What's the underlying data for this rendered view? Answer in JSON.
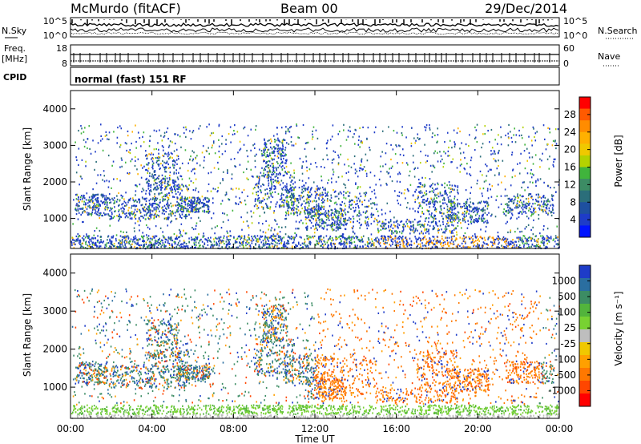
{
  "header": {
    "title": "McMurdo (fitACF)",
    "beam": "Beam 00",
    "date": "29/Dec/2014"
  },
  "top_panels": {
    "nsky_label": "N.Sky",
    "nsearch_label": "N.Search",
    "nsky_ticks": [
      "10^5",
      "10^0"
    ],
    "nsearch_ticks": [
      "10^5",
      "10^0"
    ],
    "freq_label": "Freq.",
    "freq_unit": "[MHz]",
    "freq_ticks": [
      "18",
      "8"
    ],
    "nave_label": "Nave",
    "nave_ticks": [
      "60",
      "0"
    ],
    "cpid_label": "CPID",
    "cpid_text": "normal (fast) 151 RF"
  },
  "chart_data": [
    {
      "type": "heatmap",
      "name": "power",
      "ylabel": "Slant Range [km]",
      "ylim": [
        180,
        4500
      ],
      "yticks": [
        1000,
        2000,
        3000,
        4000
      ],
      "xlim": [
        0,
        24
      ],
      "xticks": [
        0,
        4,
        8,
        12,
        16,
        20,
        24
      ],
      "colorbar": {
        "label": "Power [dB]",
        "ticks": [
          "28",
          "24",
          "20",
          "16",
          "12",
          "8",
          "4"
        ],
        "colors": [
          "#ff0000",
          "#ff5a00",
          "#ff8c00",
          "#ffb000",
          "#f0c800",
          "#b4d200",
          "#40b43c",
          "#3c8c64",
          "#2b6e7a",
          "#1e50a0",
          "#1e3cc8",
          "#0014ff"
        ]
      }
    },
    {
      "type": "heatmap",
      "name": "velocity",
      "ylabel": "Slant Range [km]",
      "ylim": [
        180,
        4500
      ],
      "yticks": [
        1000,
        2000,
        3000,
        4000
      ],
      "xlim": [
        0,
        24
      ],
      "xticks": [
        0,
        4,
        8,
        12,
        16,
        20,
        24
      ],
      "xlabel": "Time UT",
      "xticklabels": [
        "00:00",
        "04:00",
        "08:00",
        "12:00",
        "16:00",
        "20:00",
        "00:00"
      ],
      "colorbar": {
        "label": "Velocity [m s⁻¹]",
        "ticks": [
          "1000",
          "500",
          "100",
          "25",
          "-25",
          "-100",
          "-500",
          "-1000"
        ],
        "colors": [
          "#1e3cc8",
          "#2a6ea0",
          "#3c8c64",
          "#52b43c",
          "#78d232",
          "#bebebe",
          "#f0c800",
          "#ffa000",
          "#ff7800",
          "#ff4600",
          "#ff0000"
        ]
      }
    }
  ]
}
